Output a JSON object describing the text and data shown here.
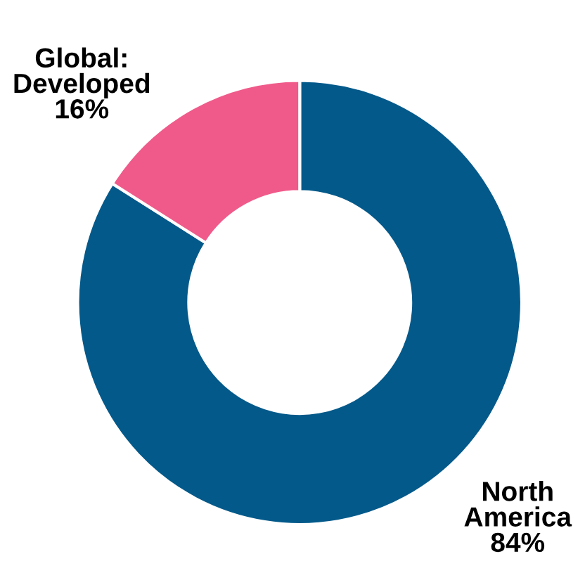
{
  "chart_data": {
    "type": "donut",
    "categories": [
      "North\nAmerica",
      "Global:\nDeveloped"
    ],
    "values": [
      84,
      16
    ],
    "colors": [
      "#02598a",
      "#f05a8a"
    ],
    "value_labels": [
      "84%",
      "16%"
    ],
    "legend": false
  }
}
